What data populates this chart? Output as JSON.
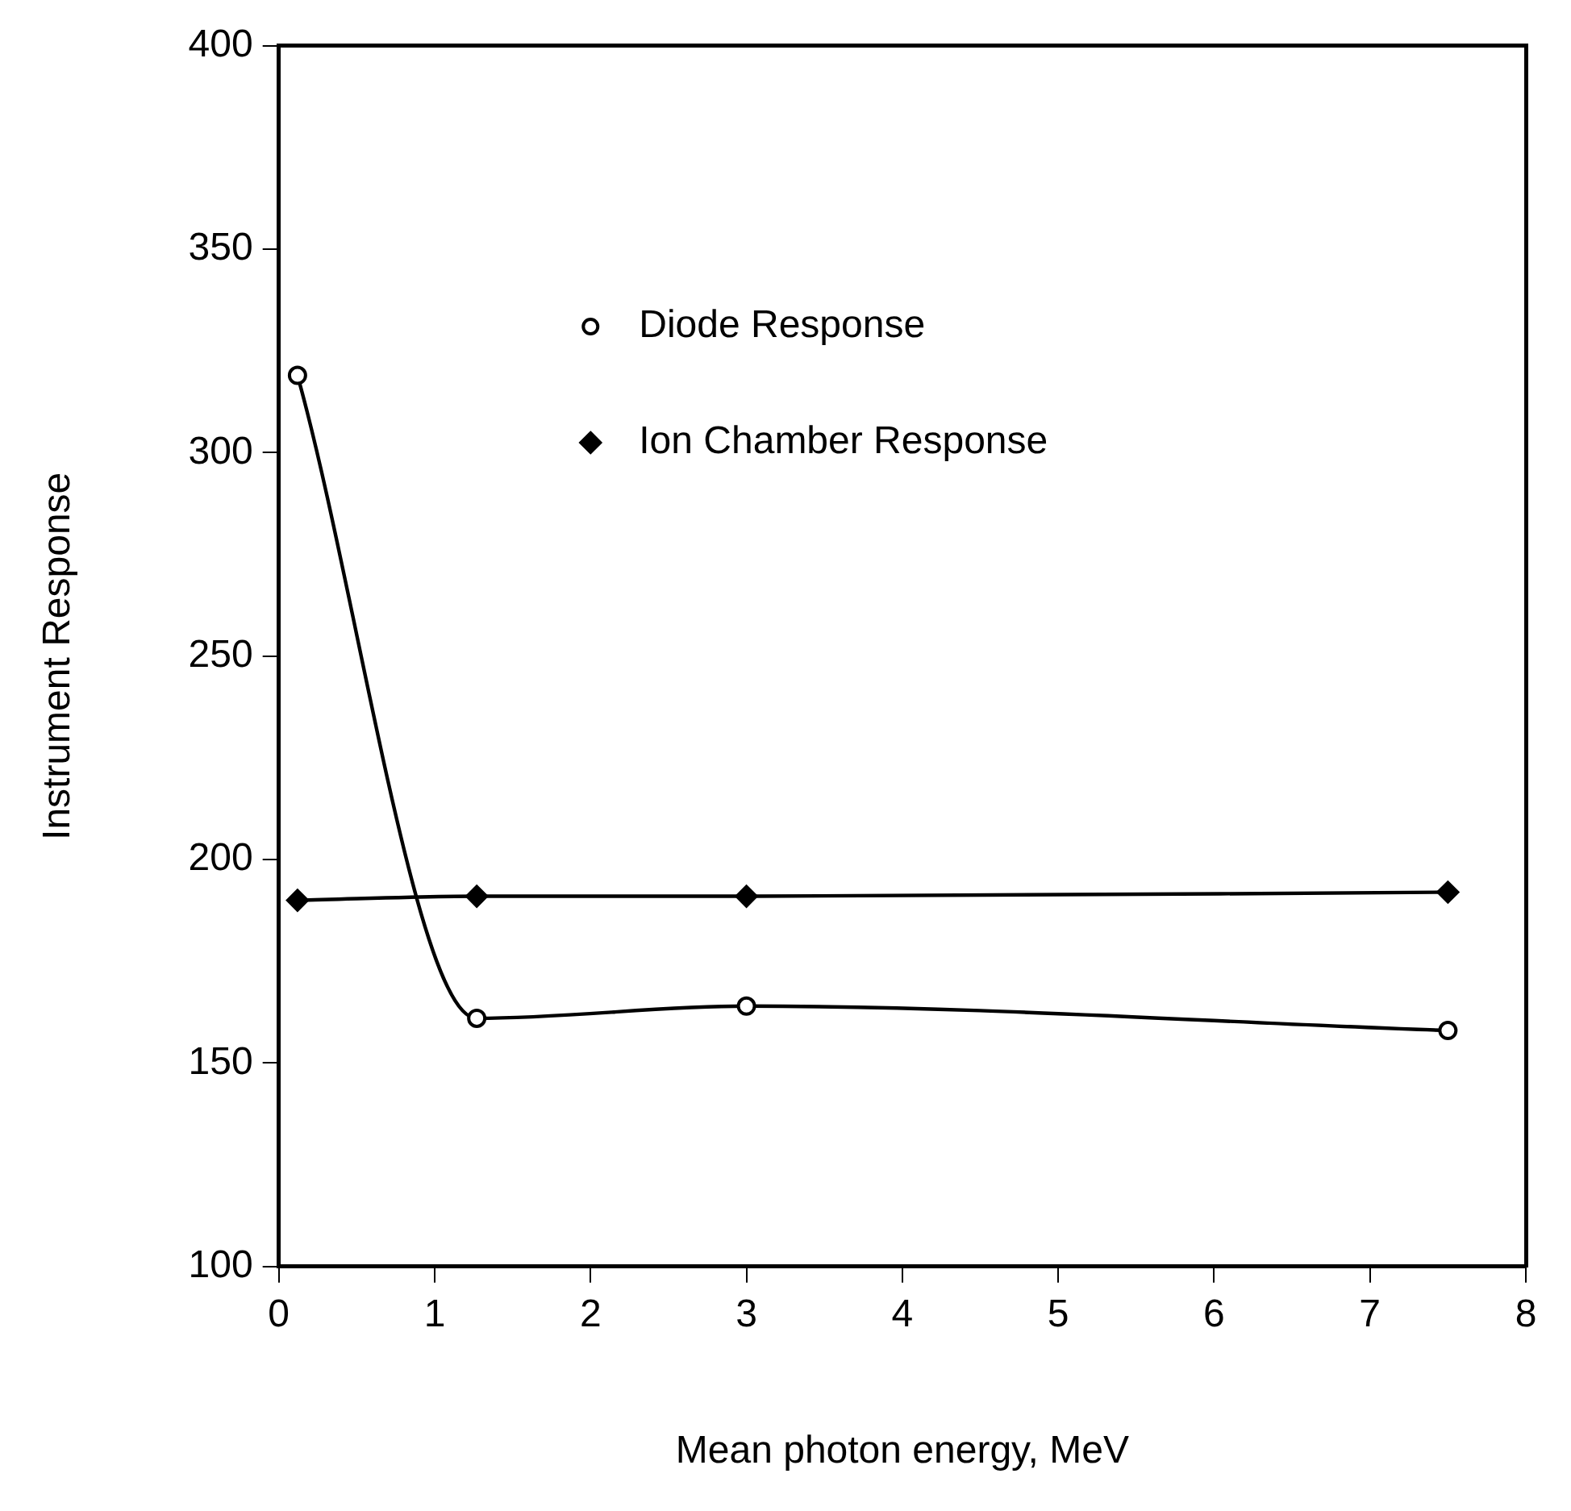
{
  "chart_data": {
    "type": "line",
    "xlabel": "Mean photon energy, MeV",
    "ylabel": "Instrument Response",
    "x": [
      0.12,
      1.27,
      3,
      7.5
    ],
    "series": [
      {
        "name": "Diode Response",
        "color": "#000000",
        "marker": "circle",
        "values": [
          319,
          161,
          164,
          158
        ]
      },
      {
        "name": "Ion Chamber Response",
        "color": "#000000",
        "marker": "diamond",
        "values": [
          190,
          191,
          191,
          192
        ]
      }
    ],
    "xlim": [
      0,
      8
    ],
    "xticks": [
      0,
      1,
      2,
      3,
      4,
      5,
      6,
      7,
      8
    ],
    "ylim": [
      100,
      400
    ],
    "yticks": [
      100,
      150,
      200,
      250,
      300,
      350,
      400
    ],
    "grid": false,
    "legend": "top"
  }
}
